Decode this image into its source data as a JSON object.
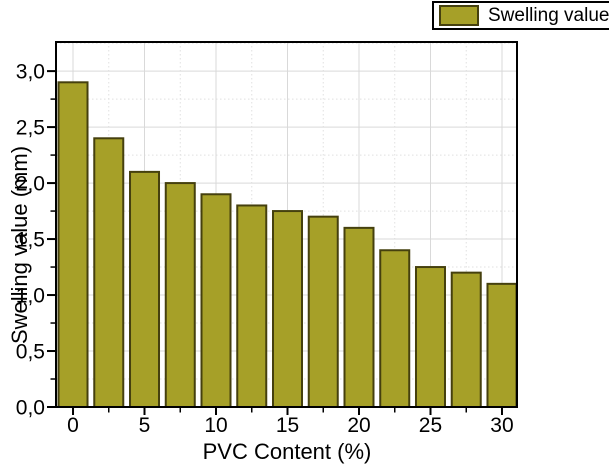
{
  "page": {
    "background": "#ffffff"
  },
  "legend": {
    "label": "Swelling value",
    "swatch_color": "#A6A028",
    "swatch_border_color": "#45400E",
    "box_border_color": "#000000",
    "position": "top-right"
  },
  "chart_data": {
    "type": "bar",
    "title": "",
    "xlabel": "PVC Content (%)",
    "ylabel": "Swelling value (mm)",
    "legend": [
      "Swelling value"
    ],
    "legend_position": "top-right",
    "categories": [
      0,
      2.5,
      5,
      7.5,
      10,
      12.5,
      15,
      17.5,
      20,
      22.5,
      25,
      27.5,
      30
    ],
    "values": [
      2.9,
      2.4,
      2.1,
      2.0,
      1.9,
      1.8,
      1.75,
      1.7,
      1.6,
      1.4,
      1.25,
      1.2,
      1.1
    ],
    "xlim": [
      -1.19,
      31.05
    ],
    "ylim": [
      0,
      3.26
    ],
    "x_major_ticks": [
      0,
      5,
      10,
      15,
      20,
      25,
      30
    ],
    "x_tick_labels": [
      "0",
      "5",
      "10",
      "15",
      "20",
      "25",
      "30"
    ],
    "x_minor_ticks": [
      2.5,
      7.5,
      12.5,
      17.5,
      22.5,
      27.5
    ],
    "y_major_ticks": [
      0,
      0.5,
      1.0,
      1.5,
      2.0,
      2.5,
      3.0
    ],
    "y_tick_labels": [
      "0,0",
      "0,5",
      "1,0",
      "1,5",
      "2,0",
      "2,5",
      "3,0"
    ],
    "y_minor_ticks": [
      0.25,
      0.75,
      1.25,
      1.75,
      2.25,
      2.75,
      3.25
    ],
    "decimal_separator": ",",
    "grid": {
      "major": "solid",
      "minor": "dotted"
    },
    "style": {
      "bar_fill": "#A6A028",
      "bar_edge": "#45400E",
      "major_grid_color": "#D9D9D9",
      "minor_grid_color": "#E0E0E0",
      "frame_color": "#000000",
      "text_color": "#000000"
    }
  }
}
